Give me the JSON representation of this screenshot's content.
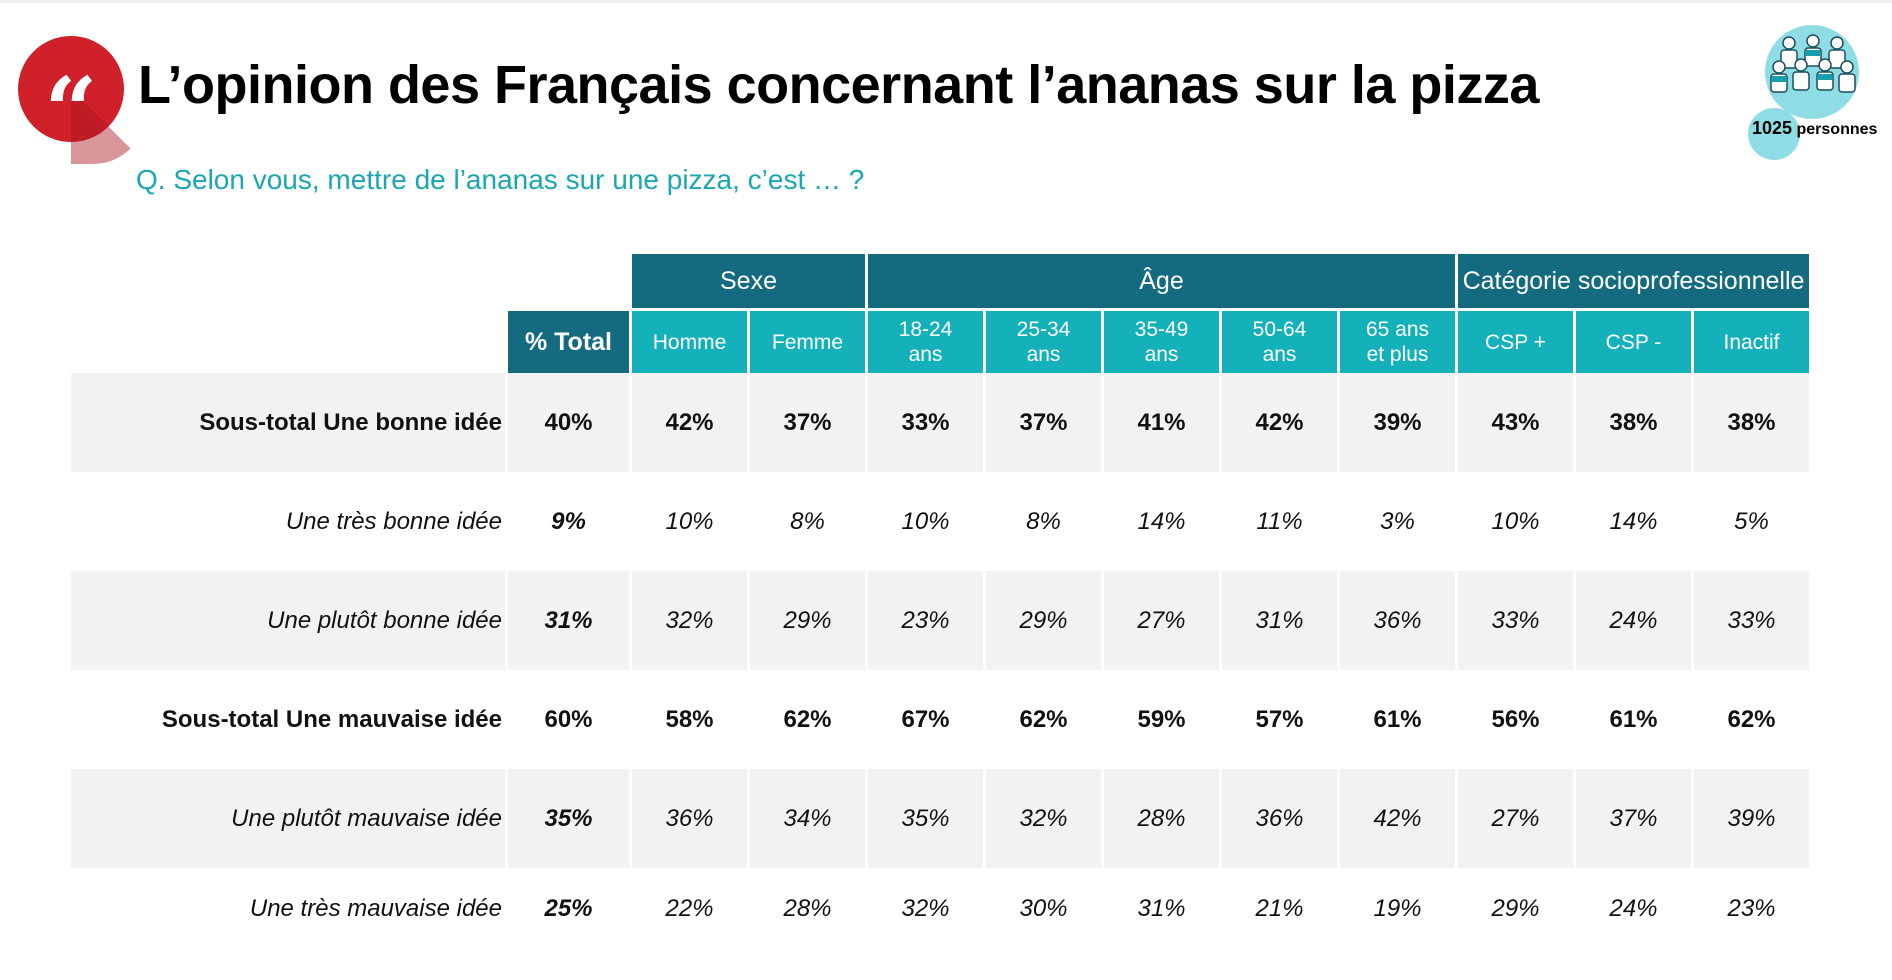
{
  "header": {
    "title": "L’opinion des Français concernant l’ananas sur la pizza",
    "question": "Q. Selon vous, mettre de l’ananas sur une pizza, c’est … ?",
    "quote_mark": "“",
    "sample_size": "1025",
    "sample_unit": "personnes",
    "icons": [
      "quote-icon",
      "people-icon"
    ]
  },
  "table": {
    "total_label": "% Total",
    "groups": [
      {
        "label": "Sexe"
      },
      {
        "label": "Âge"
      },
      {
        "label": "Catégorie socioprofessionnelle"
      }
    ],
    "columns": [
      {
        "line1": "Homme",
        "line2": ""
      },
      {
        "line1": "Femme",
        "line2": ""
      },
      {
        "line1": "18-24",
        "line2": "ans"
      },
      {
        "line1": "25-34",
        "line2": "ans"
      },
      {
        "line1": "35-49",
        "line2": "ans"
      },
      {
        "line1": "50-64",
        "line2": "ans"
      },
      {
        "line1": "65 ans",
        "line2": "et plus"
      },
      {
        "line1": "CSP +",
        "line2": ""
      },
      {
        "line1": "CSP -",
        "line2": ""
      },
      {
        "line1": "Inactif",
        "line2": ""
      }
    ],
    "rows": [
      {
        "label": "Sous-total Une bonne idée",
        "total": "40%",
        "values": [
          "42%",
          "37%",
          "33%",
          "37%",
          "41%",
          "42%",
          "39%",
          "43%",
          "38%",
          "38%"
        ]
      },
      {
        "label": "Une très bonne idée",
        "total": "9%",
        "values": [
          "10%",
          "8%",
          "10%",
          "8%",
          "14%",
          "11%",
          "3%",
          "10%",
          "14%",
          "5%"
        ]
      },
      {
        "label": "Une plutôt bonne idée",
        "total": "31%",
        "values": [
          "32%",
          "29%",
          "23%",
          "29%",
          "27%",
          "31%",
          "36%",
          "33%",
          "24%",
          "33%"
        ]
      },
      {
        "label": "Sous-total Une mauvaise idée",
        "total": "60%",
        "values": [
          "58%",
          "62%",
          "67%",
          "62%",
          "59%",
          "57%",
          "61%",
          "56%",
          "61%",
          "62%"
        ]
      },
      {
        "label": "Une plutôt mauvaise idée",
        "total": "35%",
        "values": [
          "36%",
          "34%",
          "35%",
          "32%",
          "28%",
          "36%",
          "42%",
          "27%",
          "37%",
          "39%"
        ]
      },
      {
        "label": "Une très mauvaise idée",
        "total": "25%",
        "values": [
          "22%",
          "28%",
          "32%",
          "30%",
          "31%",
          "21%",
          "19%",
          "29%",
          "24%",
          "23%"
        ]
      }
    ]
  },
  "colors": {
    "brand_red": "#d0202a",
    "header_dark_teal": "#146b80",
    "header_teal": "#14b1bb",
    "question_teal": "#1aa6b3",
    "row_shade": "#f2f2f2"
  }
}
